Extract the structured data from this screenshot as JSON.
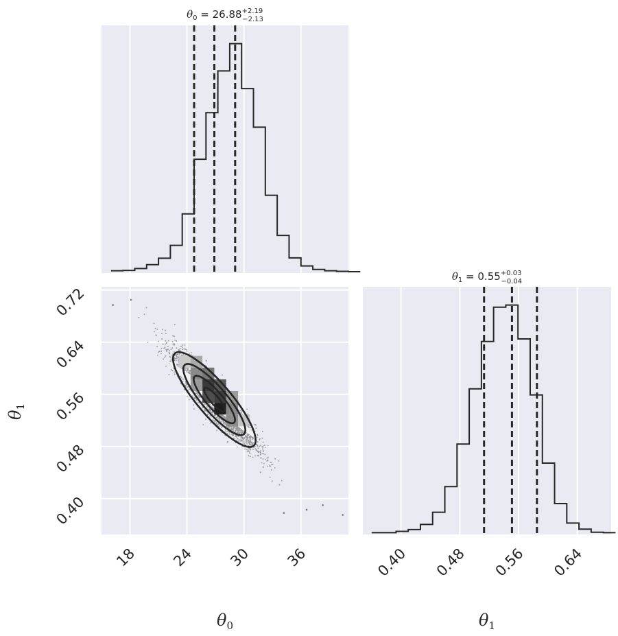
{
  "chart_data": [
    {
      "type": "histogram",
      "panel": "theta0-marginal",
      "title": {
        "lhs": "θ",
        "sub": "0",
        "eq": " = ",
        "value": "26.88",
        "plus": "+2.19",
        "minus": "−2.13"
      },
      "bin_start": 16.0,
      "bin_width": 1.25,
      "counts": [
        0.3,
        0.4,
        1.0,
        2.2,
        4.2,
        8.2,
        18.0,
        35.0,
        49.5,
        62.5,
        71.0,
        57.0,
        45.0,
        23.8,
        11.3,
        4.3,
        1.8,
        0.7,
        0.3,
        0.1,
        0.0
      ],
      "xlim": [
        15.0,
        41.0
      ],
      "quantile_lines": [
        24.75,
        26.88,
        29.07
      ],
      "color": "#262626"
    },
    {
      "type": "scatter_density",
      "panel": "theta0-theta1-joint",
      "x_ticks": [
        "18",
        "24",
        "30",
        "36"
      ],
      "x_tick_values": [
        18,
        24,
        30,
        36
      ],
      "y_ticks": [
        "0.40",
        "0.48",
        "0.56",
        "0.64",
        "0.72"
      ],
      "y_tick_values": [
        0.4,
        0.48,
        0.56,
        0.64,
        0.72
      ],
      "xlim": [
        15.0,
        41.0
      ],
      "ylim": [
        0.345,
        0.725
      ],
      "xlabel": {
        "lhs": "θ",
        "sub": "0"
      },
      "ylabel": {
        "lhs": "θ",
        "sub": "1"
      },
      "mean": [
        26.88,
        0.552
      ],
      "std": [
        2.13,
        0.036
      ],
      "correlation": -0.92,
      "density_cells": [
        {
          "x": 25.0,
          "y": 0.592,
          "shade": "#8a8a8a"
        },
        {
          "x": 25.0,
          "y": 0.574,
          "shade": "#9a9a9a"
        },
        {
          "x": 26.25,
          "y": 0.574,
          "shade": "#3a3a3a"
        },
        {
          "x": 26.25,
          "y": 0.556,
          "shade": "#4e4e4e"
        },
        {
          "x": 27.5,
          "y": 0.574,
          "shade": "#5a5a5a"
        },
        {
          "x": 27.5,
          "y": 0.556,
          "shade": "#3e3e3e"
        },
        {
          "x": 27.5,
          "y": 0.538,
          "shade": "#1e1e1e"
        },
        {
          "x": 28.75,
          "y": 0.538,
          "shade": "#888888"
        },
        {
          "x": 28.75,
          "y": 0.52,
          "shade": "#8c8c8c"
        },
        {
          "x": 26.25,
          "y": 0.592,
          "shade": "#777777"
        },
        {
          "x": 25.0,
          "y": 0.61,
          "shade": "#aaaaaa"
        },
        {
          "x": 28.75,
          "y": 0.556,
          "shade": "#9c9c9c"
        },
        {
          "x": 23.75,
          "y": 0.61,
          "shade": "#c9c9c9"
        },
        {
          "x": 30.0,
          "y": 0.52,
          "shade": "#c5c5c5"
        }
      ],
      "outliers": [
        [
          18.1,
          0.705
        ],
        [
          16.2,
          0.697
        ],
        [
          40.4,
          0.375
        ],
        [
          38.3,
          0.39
        ],
        [
          34.2,
          0.378
        ],
        [
          36.6,
          0.383
        ]
      ]
    },
    {
      "type": "histogram",
      "panel": "theta1-marginal",
      "title": {
        "lhs": "θ",
        "sub": "1",
        "eq": " = ",
        "value": "0.55",
        "plus": "+0.03",
        "minus": "−0.04"
      },
      "bin_start": 0.36,
      "bin_width": 0.0166,
      "counts": [
        0.1,
        0.1,
        0.4,
        0.8,
        2.0,
        4.8,
        10.7,
        20.5,
        33.2,
        44.1,
        52.0,
        52.5,
        44.7,
        31.8,
        16.1,
        6.8,
        2.3,
        0.9,
        0.2,
        0.1
      ],
      "xlim": [
        0.348,
        0.686
      ],
      "quantile_lines": [
        0.513,
        0.551,
        0.585
      ],
      "x_ticks": [
        "0.40",
        "0.48",
        "0.56",
        "0.64"
      ],
      "x_tick_values": [
        0.4,
        0.48,
        0.56,
        0.64
      ],
      "xlabel": {
        "lhs": "θ",
        "sub": "1"
      },
      "color": "#262626"
    }
  ],
  "colors": {
    "panel_bg": "#eaeaf2",
    "grid": "#ffffff",
    "ink": "#262626"
  }
}
